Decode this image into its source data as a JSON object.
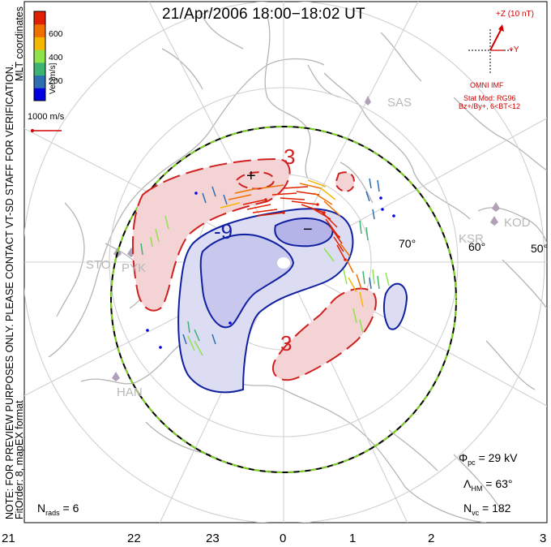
{
  "title": "21/Apr/2006 18:00−18:02 UT",
  "side_note": {
    "line1": "NOTE: FOR PREVIEW PURPOSES ONLY. PLEASE CONTACT VT-SD STAFF FOR VERIFICATION.",
    "line2": "FitOrder: 8, mapEX format",
    "coords": "MLT coordinates"
  },
  "colorbar": {
    "label": "Vel [m/s]",
    "ticks": [
      "600",
      "400",
      "200"
    ],
    "colors": [
      "#0000e0",
      "#2d6fb0",
      "#3cb371",
      "#8fe34a",
      "#f5b800",
      "#f07000",
      "#e02000"
    ]
  },
  "reference_vector": {
    "label": "1000 m/s",
    "color": "#d00000"
  },
  "imf": {
    "z_label": "+Z (10 nT)",
    "y_label": "+Y",
    "source": "OMNI IMF",
    "stat_mod": "Stat Mod: RG96",
    "condition": "Bz+/By+, 6<BT<12",
    "color": "#d00000"
  },
  "stats": {
    "phi": {
      "sym": "Φ",
      "sub": "pc",
      "value": "= 29 kV"
    },
    "lambda": {
      "sym": "Λ",
      "sub": "HM",
      "value": "= 63°"
    },
    "nvc": {
      "sym": "N",
      "sub": "vc",
      "value": "= 182"
    },
    "nrads": {
      "sym": "N",
      "sub": "rads",
      "value": "= 6"
    }
  },
  "contours": {
    "positive": "3",
    "negative": "-9",
    "plus_sign": "+",
    "minus_sign": "−",
    "negative_bottom": "3"
  },
  "mlt_labels": [
    "21",
    "22",
    "23",
    "0",
    "1",
    "2",
    "3"
  ],
  "latitude_labels": [
    "70°",
    "60°",
    "50°"
  ],
  "sites": [
    "SAS",
    "KOD",
    "KSR",
    "STO",
    "PYK",
    "HAN"
  ]
}
